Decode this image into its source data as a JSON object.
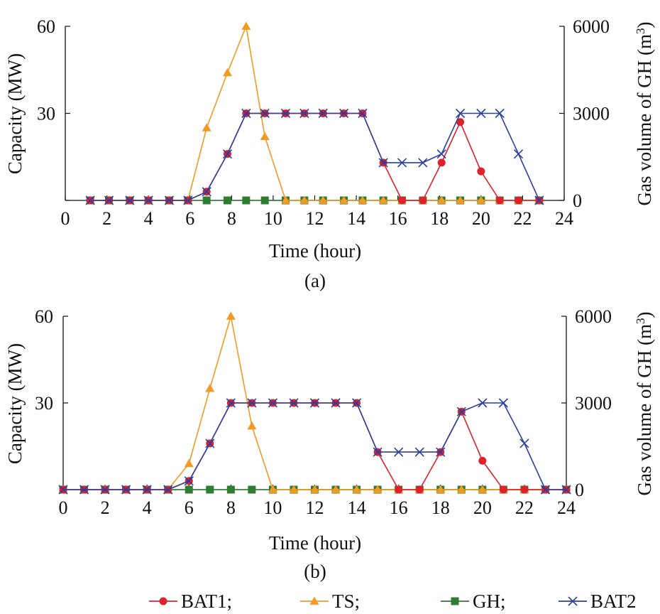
{
  "charts": [
    {
      "caption": "(a)",
      "xlabel": "Time (hour)",
      "ylabel_left": "Capacity (MW)",
      "ylabel_right_main": "Gas volume of GH (m",
      "ylabel_right_sup": "3",
      "ylabel_right_close": ")",
      "x_ticks": [
        "0",
        "2",
        "4",
        "6",
        "8",
        "10",
        "12",
        "14",
        "16",
        "18",
        "20",
        "22",
        "24"
      ],
      "y_ticks_left": [
        "0",
        "30",
        "60"
      ],
      "y_ticks_right": [
        "0",
        "3000",
        "6000"
      ]
    },
    {
      "caption": "(b)",
      "xlabel": "Time (hour)",
      "ylabel_left": "Capacity (MW)",
      "ylabel_right_main": "Gas volume  of GH (m",
      "ylabel_right_sup": "3",
      "ylabel_right_close": ")",
      "x_ticks": [
        "0",
        "2",
        "4",
        "6",
        "8",
        "10",
        "12",
        "14",
        "16",
        "18",
        "20",
        "22",
        "24"
      ],
      "y_ticks_left": [
        "0",
        "30",
        "60"
      ],
      "y_ticks_right": [
        "0",
        "3000",
        "6000"
      ]
    }
  ],
  "legend": [
    {
      "label": "BAT1;",
      "color": "#e0202a",
      "marker": "circle"
    },
    {
      "label": "TS;",
      "color": "#f29a24",
      "marker": "triangle"
    },
    {
      "label": "GH;",
      "color": "#2e7d32",
      "marker": "square"
    },
    {
      "label": "BAT2",
      "color": "#2a3f9c",
      "marker": "x"
    }
  ],
  "chart_data": [
    {
      "type": "line",
      "xlim": [
        0,
        24
      ],
      "ylim_left": [
        0,
        60
      ],
      "ylim_right": [
        0,
        6000
      ],
      "series": [
        {
          "name": "BAT1",
          "color": "#e0202a",
          "marker": "circle",
          "axis": "left",
          "x": [
            1.2,
            2.1,
            3.1,
            4.0,
            5.0,
            5.9,
            6.8,
            7.8,
            8.7,
            9.6,
            10.6,
            11.5,
            12.4,
            13.4,
            14.3,
            15.3,
            16.2,
            17.2,
            18.1,
            19.0,
            20.0,
            20.9,
            21.8,
            22.8
          ],
          "y": [
            0,
            0,
            0,
            0,
            0,
            0,
            3,
            16,
            30,
            30,
            30,
            30,
            30,
            30,
            30,
            13,
            0,
            0,
            13,
            27,
            10,
            0,
            0,
            0
          ]
        },
        {
          "name": "TS",
          "color": "#f29a24",
          "marker": "triangle",
          "axis": "left",
          "x": [
            1.2,
            2.1,
            3.1,
            4.0,
            5.0,
            5.9,
            6.8,
            7.8,
            8.7,
            9.6,
            10.6,
            11.5,
            12.4,
            13.4,
            14.3,
            15.3,
            16.2,
            17.2,
            18.1,
            19.0,
            20.0,
            20.9,
            21.8,
            22.8
          ],
          "y": [
            0,
            0,
            0,
            0,
            0,
            0,
            25,
            44,
            60,
            22,
            0,
            0,
            0,
            0,
            0,
            0,
            0,
            0,
            0,
            0,
            0,
            0,
            0,
            0
          ]
        },
        {
          "name": "GH",
          "color": "#2e7d32",
          "marker": "square",
          "axis": "right",
          "x": [
            1.2,
            2.1,
            3.1,
            4.0,
            5.0,
            5.9,
            6.8,
            7.8,
            8.7,
            9.6,
            10.6,
            11.5,
            12.4,
            13.4,
            14.3,
            15.3,
            16.2,
            17.2,
            18.1,
            19.0,
            20.0,
            20.9,
            21.8,
            22.8
          ],
          "y": [
            0,
            0,
            0,
            0,
            0,
            0,
            0,
            0,
            0,
            0,
            0,
            0,
            0,
            0,
            0,
            0,
            0,
            0,
            0,
            0,
            0,
            0,
            0,
            0
          ]
        },
        {
          "name": "BAT2",
          "color": "#2a3f9c",
          "marker": "x",
          "axis": "left",
          "x": [
            1.2,
            2.1,
            3.1,
            4.0,
            5.0,
            5.9,
            6.8,
            7.8,
            8.7,
            9.6,
            10.6,
            11.5,
            12.4,
            13.4,
            14.3,
            15.3,
            16.2,
            17.2,
            18.1,
            19.0,
            20.0,
            20.9,
            21.8,
            22.8
          ],
          "y": [
            0,
            0,
            0,
            0,
            0,
            0,
            3,
            16,
            30,
            30,
            30,
            30,
            30,
            30,
            30,
            13,
            13,
            13,
            16,
            30,
            30,
            30,
            16,
            0
          ]
        }
      ]
    },
    {
      "type": "line",
      "xlim": [
        0,
        24
      ],
      "ylim_left": [
        0,
        60
      ],
      "ylim_right": [
        0,
        6000
      ],
      "series": [
        {
          "name": "BAT1",
          "color": "#e0202a",
          "marker": "circle",
          "axis": "left",
          "x": [
            0,
            1,
            2,
            3,
            4,
            5,
            6,
            7,
            8,
            9,
            10,
            11,
            12,
            13,
            14,
            15,
            16,
            17,
            18,
            19,
            20,
            21,
            22,
            23,
            24
          ],
          "y": [
            0,
            0,
            0,
            0,
            0,
            0,
            3,
            16,
            30,
            30,
            30,
            30,
            30,
            30,
            30,
            13,
            0,
            0,
            13,
            27,
            10,
            0,
            0,
            0,
            0
          ]
        },
        {
          "name": "TS",
          "color": "#f29a24",
          "marker": "triangle",
          "axis": "left",
          "x": [
            0,
            1,
            2,
            3,
            4,
            5,
            6,
            7,
            8,
            9,
            10,
            11,
            12,
            13,
            14,
            15,
            16,
            17,
            18,
            19,
            20,
            21,
            22,
            23,
            24
          ],
          "y": [
            0,
            0,
            0,
            0,
            0,
            0,
            9,
            35,
            60,
            22,
            0,
            0,
            0,
            0,
            0,
            0,
            0,
            0,
            0,
            0,
            0,
            0,
            0,
            0,
            0
          ]
        },
        {
          "name": "GH",
          "color": "#2e7d32",
          "marker": "square",
          "axis": "right",
          "x": [
            0,
            1,
            2,
            3,
            4,
            5,
            6,
            7,
            8,
            9,
            10,
            11,
            12,
            13,
            14,
            15,
            16,
            17,
            18,
            19,
            20,
            21,
            22,
            23,
            24
          ],
          "y": [
            0,
            0,
            0,
            0,
            0,
            0,
            0,
            0,
            0,
            0,
            0,
            0,
            0,
            0,
            0,
            0,
            0,
            0,
            0,
            0,
            0,
            0,
            0,
            0,
            0
          ]
        },
        {
          "name": "BAT2",
          "color": "#2a3f9c",
          "marker": "x",
          "axis": "left",
          "x": [
            0,
            1,
            2,
            3,
            4,
            5,
            6,
            7,
            8,
            9,
            10,
            11,
            12,
            13,
            14,
            15,
            16,
            17,
            18,
            19,
            20,
            21,
            22,
            23,
            24
          ],
          "y": [
            0,
            0,
            0,
            0,
            0,
            0,
            3,
            16,
            30,
            30,
            30,
            30,
            30,
            30,
            30,
            13,
            13,
            13,
            13,
            27,
            30,
            30,
            16,
            0,
            0
          ]
        }
      ]
    }
  ]
}
